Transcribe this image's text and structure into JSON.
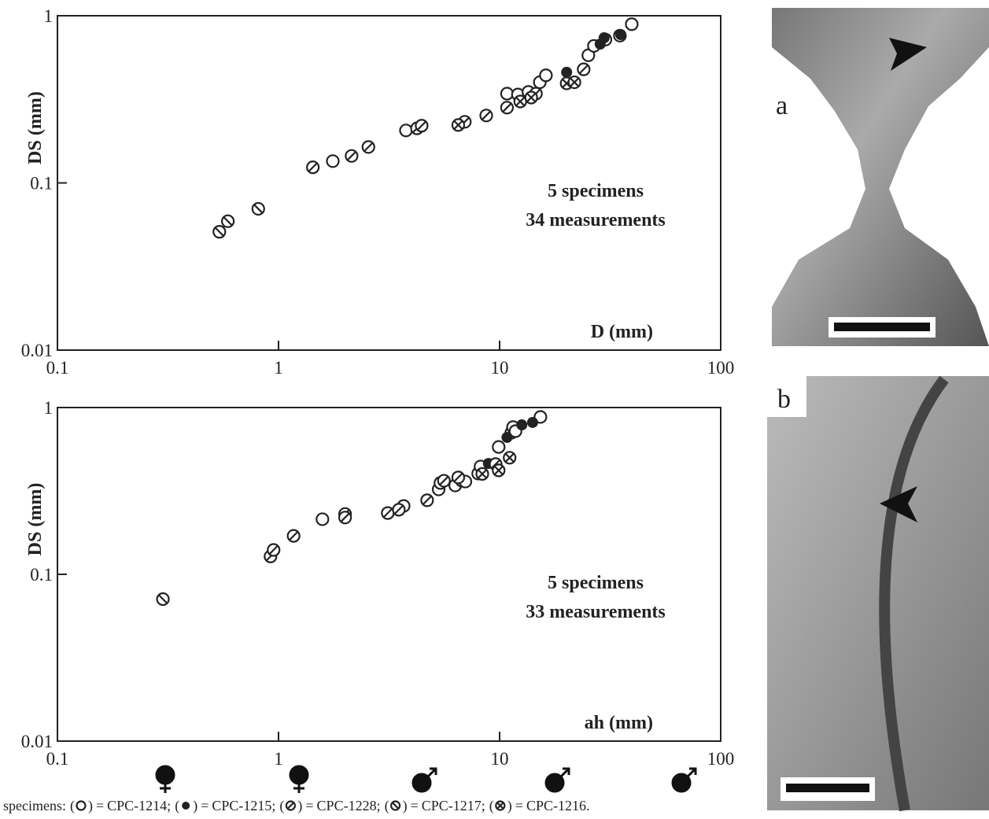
{
  "chart_data": [
    {
      "type": "scatter",
      "xlabel": "D (mm)",
      "ylabel": "DS (mm)",
      "annotations": [
        "5 specimens",
        "34 measurements"
      ],
      "xlog": true,
      "ylog": true,
      "xlim": [
        0.1,
        100
      ],
      "ylim": [
        0.01,
        1
      ],
      "xticks": [
        0.1,
        1,
        10,
        100
      ],
      "yticks": [
        0.01,
        0.1,
        1
      ],
      "series": [
        {
          "name": "CPC-1214",
          "marker": "open",
          "color": "#222",
          "x": [
            1.76,
            3.77,
            10.8,
            12.1,
            13.5,
            15.2,
            16.2,
            25.2,
            26.7,
            30.1,
            35,
            39.6
          ],
          "y": [
            0.135,
            0.206,
            0.342,
            0.338,
            0.35,
            0.4,
            0.44,
            0.58,
            0.66,
            0.72,
            0.76,
            0.89
          ]
        },
        {
          "name": "CPC-1215",
          "marker": "filled",
          "color": "#222",
          "x": [
            20.1,
            28.5,
            29.7,
            35.3
          ],
          "y": [
            0.459,
            0.677,
            0.738,
            0.771
          ]
        },
        {
          "name": "CPC-1228",
          "marker": "slash",
          "color": "#222",
          "x": [
            1.43,
            2.14,
            2.55,
            4.23,
            4.44,
            6.96,
            8.7,
            10.8,
            14.6,
            24
          ],
          "y": [
            0.124,
            0.145,
            0.164,
            0.212,
            0.22,
            0.232,
            0.253,
            0.282,
            0.342,
            0.478
          ]
        },
        {
          "name": "CPC-1217",
          "marker": "backslash",
          "color": "#222",
          "x": [
            0.54,
            0.59,
            0.81
          ],
          "y": [
            0.051,
            0.059,
            0.07
          ]
        },
        {
          "name": "CPC-1216",
          "marker": "cross",
          "color": "#222",
          "x": [
            6.5,
            12.4,
            13.9,
            20.1,
            21.8
          ],
          "y": [
            0.222,
            0.307,
            0.324,
            0.394,
            0.4
          ]
        }
      ]
    },
    {
      "type": "scatter",
      "xlabel": "ah (mm)",
      "ylabel": "DS (mm)",
      "annotations": [
        "5 specimens",
        "33 measurements"
      ],
      "xlog": true,
      "ylog": true,
      "xlim": [
        0.1,
        100
      ],
      "ylim": [
        0.01,
        1
      ],
      "xticks": [
        0.1,
        1,
        10,
        100
      ],
      "yticks": [
        0.01,
        0.1,
        1
      ],
      "series": [
        {
          "marker": "open",
          "color": "#222",
          "x": [
            1.58,
            3.68,
            5.3,
            5.4,
            6.3,
            6.75,
            7.0,
            8.0,
            8.2,
            9.9,
            11.3,
            11.5,
            11.8,
            15.3
          ],
          "y": [
            0.214,
            0.257,
            0.323,
            0.353,
            0.341,
            0.364,
            0.36,
            0.402,
            0.443,
            0.58,
            0.706,
            0.763,
            0.722,
            0.878
          ]
        },
        {
          "marker": "filled",
          "color": "#222",
          "x": [
            8.9,
            10.8,
            12.6,
            14.1
          ],
          "y": [
            0.462,
            0.662,
            0.787,
            0.814
          ]
        },
        {
          "marker": "slash",
          "color": "#222",
          "x": [
            0.92,
            0.95,
            1.17,
            2.0,
            2.0,
            3.12,
            3.5,
            4.7,
            5.6,
            6.5,
            9.6
          ],
          "y": [
            0.128,
            0.14,
            0.17,
            0.23,
            0.219,
            0.233,
            0.244,
            0.278,
            0.364,
            0.381,
            0.458
          ]
        },
        {
          "marker": "backslash",
          "color": "#222",
          "x": [
            0.3
          ],
          "y": [
            0.071
          ]
        },
        {
          "marker": "cross",
          "color": "#222",
          "x": [
            8.35,
            9.9,
            11.1
          ],
          "y": [
            0.4,
            0.42,
            0.5
          ]
        }
      ]
    }
  ],
  "panels": [
    "a",
    "b"
  ],
  "caption": {
    "prefix": "specimens:",
    "open": "(",
    "close": ")",
    "equals": "=",
    "separator": ";",
    "end": "."
  }
}
